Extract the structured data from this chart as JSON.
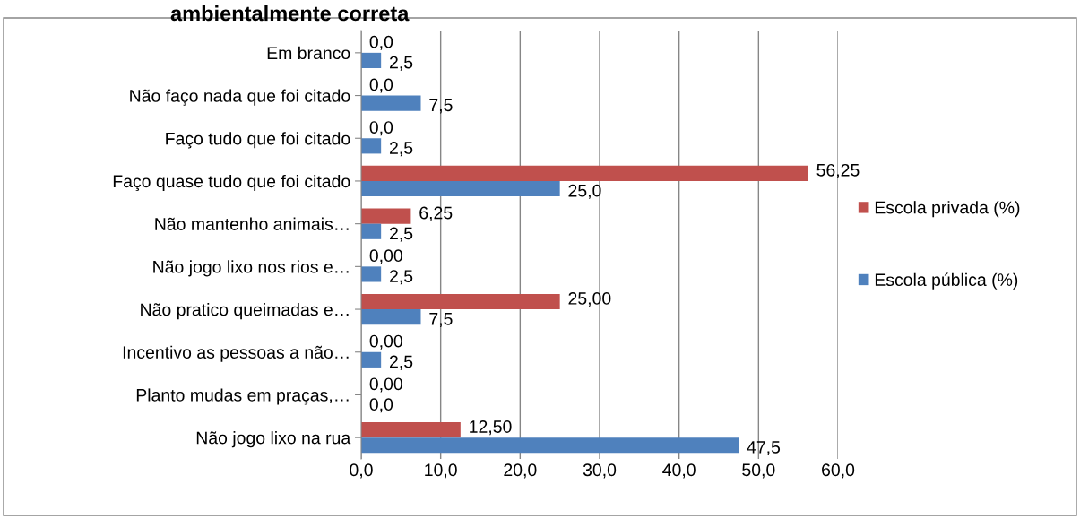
{
  "chart_data": {
    "type": "bar",
    "orientation": "horizontal",
    "title": "ambientalmente correta",
    "categories": [
      "Em branco",
      "Não faço nada que foi citado",
      "Faço tudo que foi citado",
      "Faço quase tudo que foi citado",
      "Não mantenho animais…",
      "Não jogo lixo nos rios e…",
      "Não pratico queimadas e…",
      "Incentivo as pessoas a não…",
      "Planto mudas em praças,…",
      "Não jogo lixo na rua"
    ],
    "series": [
      {
        "name": "Escola privada (%)",
        "color": "#c0504d",
        "values": [
          0,
          0,
          0,
          56.25,
          6.25,
          0,
          25,
          0,
          0,
          12.5
        ],
        "value_labels": [
          "0,0",
          "0,0",
          "0,0",
          "56,25",
          "6,25",
          "0,00",
          "25,00",
          "0,00",
          "0,00",
          "12,50"
        ]
      },
      {
        "name": "Escola pública (%)",
        "color": "#4f81bd",
        "values": [
          2.5,
          7.5,
          2.5,
          25,
          2.5,
          2.5,
          7.5,
          2.5,
          0,
          47.5
        ],
        "value_labels": [
          "2,5",
          "7,5",
          "2,5",
          "25,0",
          "2,5",
          "2,5",
          "7,5",
          "2,5",
          "0,0",
          "47,5"
        ]
      }
    ],
    "xlim": [
      0,
      60
    ],
    "xticks": [
      {
        "value": 0,
        "label": "0,0"
      },
      {
        "value": 10,
        "label": "10,0"
      },
      {
        "value": 20,
        "label": "20,0"
      },
      {
        "value": 30,
        "label": "30,0"
      },
      {
        "value": 40,
        "label": "40,0"
      },
      {
        "value": 50,
        "label": "50,0"
      },
      {
        "value": 60,
        "label": "60,0"
      }
    ],
    "grid": "x",
    "legend": "right"
  }
}
